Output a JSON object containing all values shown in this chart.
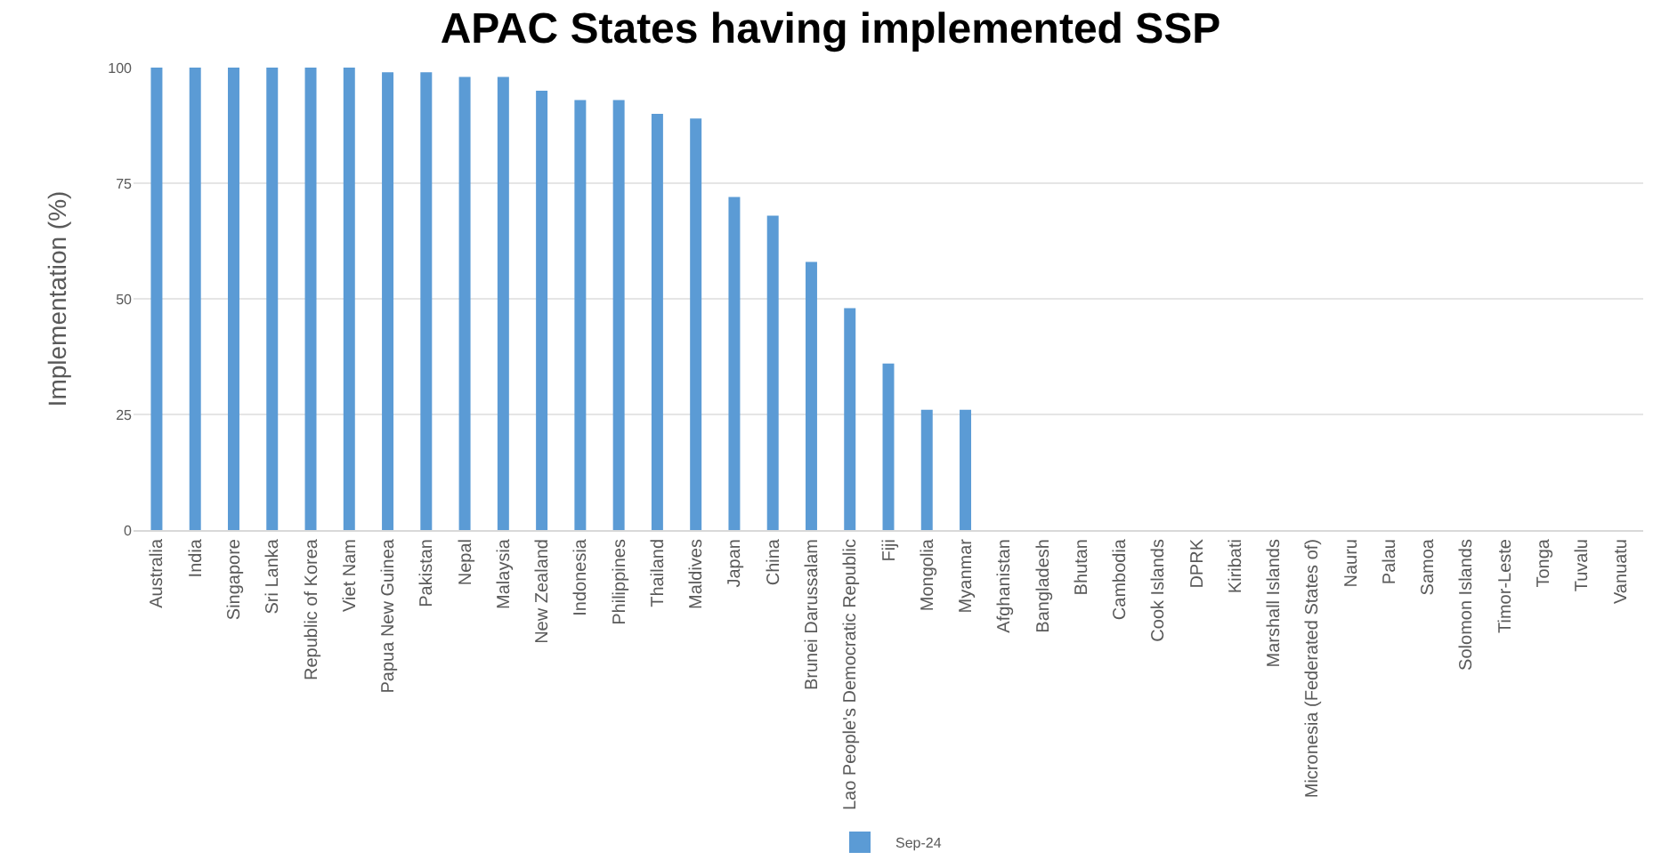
{
  "chart_data": {
    "type": "bar",
    "title": "APAC States having implemented SSP",
    "ylabel": "Implementation (%)",
    "categories": [
      "Australia",
      "India",
      "Singapore",
      "Sri Lanka",
      "Republic of Korea",
      "Viet Nam",
      "Papua New Guinea",
      "Pakistan",
      "Nepal",
      "Malaysia",
      "New Zealand",
      "Indonesia",
      "Philippines",
      "Thailand",
      "Maldives",
      "Japan",
      "China",
      "Brunei Darussalam",
      "Lao People's Democratic Republic",
      "Fiji",
      "Mongolia",
      "Myanmar",
      "Afghanistan",
      "Bangladesh",
      "Bhutan",
      "Cambodia",
      "Cook Islands",
      "DPRK",
      "Kiribati",
      "Marshall Islands",
      "Micronesia (Federated States of)",
      "Nauru",
      "Palau",
      "Samoa",
      "Solomon Islands",
      "Timor-Leste",
      "Tonga",
      "Tuvalu",
      "Vanuatu"
    ],
    "series": [
      {
        "name": "Sep-24",
        "color": "#5b9bd5",
        "values": [
          100,
          100,
          100,
          100,
          100,
          100,
          99,
          99,
          98,
          98,
          95,
          93,
          93,
          90,
          89,
          72,
          68,
          58,
          48,
          36,
          26,
          26,
          0,
          0,
          0,
          0,
          0,
          0,
          0,
          0,
          0,
          0,
          0,
          0,
          0,
          0,
          0,
          0,
          0
        ]
      }
    ],
    "ylim": [
      0,
      100
    ],
    "yticks": [
      0,
      25,
      50,
      75,
      100
    ],
    "grid": "y",
    "legend": "bottom"
  }
}
